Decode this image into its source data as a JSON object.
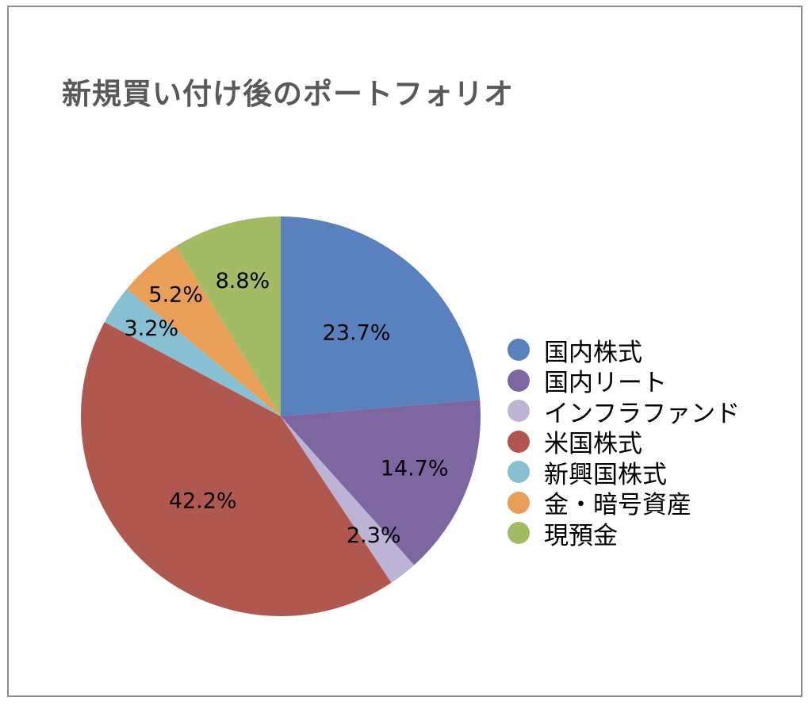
{
  "chart_data": {
    "type": "pie",
    "title": "新規買い付け後のポートフォリオ",
    "legend_position": "right",
    "slices": [
      {
        "name": "国内株式",
        "value": 23.7,
        "label": "23.7%",
        "color": "#5981bd"
      },
      {
        "name": "国内リート",
        "value": 14.7,
        "label": "14.7%",
        "color": "#7e66a0"
      },
      {
        "name": "インフラファンド",
        "value": 2.3,
        "label": "2.3%",
        "color": "#bdb3d4"
      },
      {
        "name": "米国株式",
        "value": 42.2,
        "label": "42.2%",
        "color": "#b0574f"
      },
      {
        "name": "新興国株式",
        "value": 3.2,
        "label": "3.2%",
        "color": "#87c0d3"
      },
      {
        "name": "金・暗号資産",
        "value": 5.2,
        "label": "5.2%",
        "color": "#e99f58"
      },
      {
        "name": "現預金",
        "value": 8.8,
        "label": "8.8%",
        "color": "#a3bc63"
      }
    ]
  }
}
